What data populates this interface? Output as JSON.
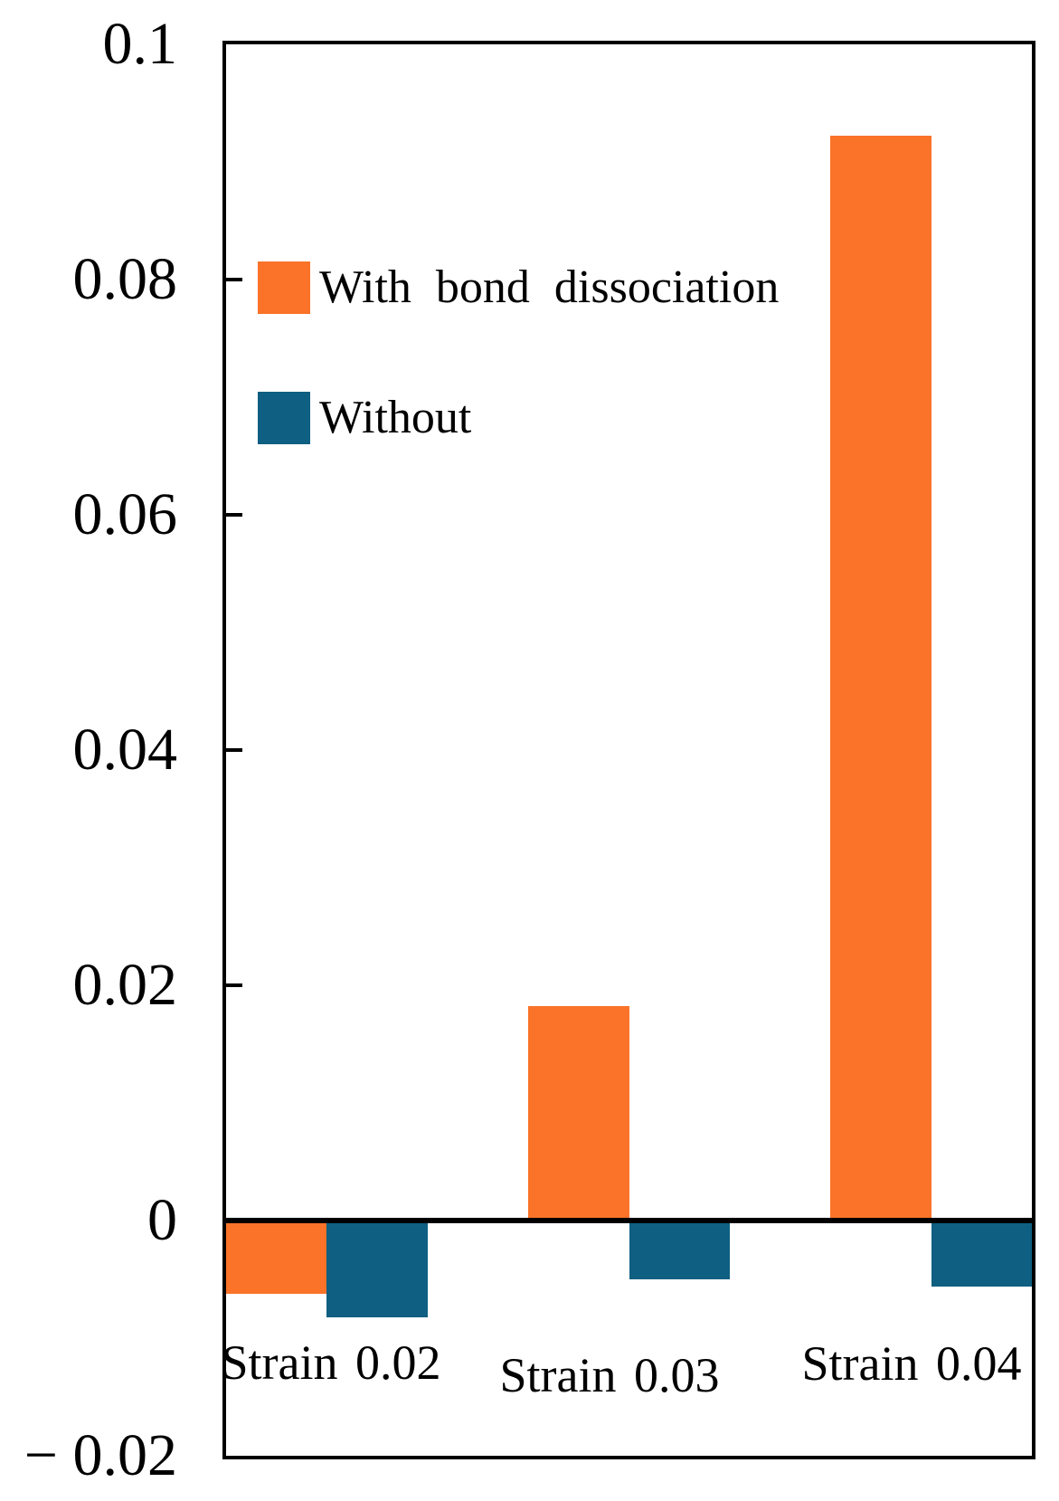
{
  "chart_data": {
    "type": "bar",
    "title": "",
    "xlabel": "",
    "ylabel": "",
    "categories": [
      "Strain 0.02",
      "Strain 0.03",
      "Strain 0.04"
    ],
    "series": [
      {
        "name": "With bond dissociation",
        "color": "#FA7329",
        "values": [
          -0.0062,
          0.0182,
          0.0922
        ]
      },
      {
        "name": "Without",
        "color": "#0E5F81",
        "values": [
          -0.0082,
          -0.005,
          -0.0056
        ]
      }
    ],
    "ylim": [
      -0.02,
      0.1
    ],
    "yticks": [
      {
        "value": 0.1,
        "label": "0.1"
      },
      {
        "value": 0.08,
        "label": "0.08"
      },
      {
        "value": 0.06,
        "label": "0.06"
      },
      {
        "value": 0.04,
        "label": "0.04"
      },
      {
        "value": 0.02,
        "label": "0.02"
      },
      {
        "value": 0,
        "label": "0"
      },
      {
        "value": -0.02,
        "label": "− 0.02"
      }
    ],
    "tick_marks_at": [
      0.08,
      0.06,
      0.04,
      0.02
    ],
    "grid": false,
    "legend_position": "upper-left-inside",
    "axis_color": "#000000",
    "background_color": "#FFFFFF"
  }
}
